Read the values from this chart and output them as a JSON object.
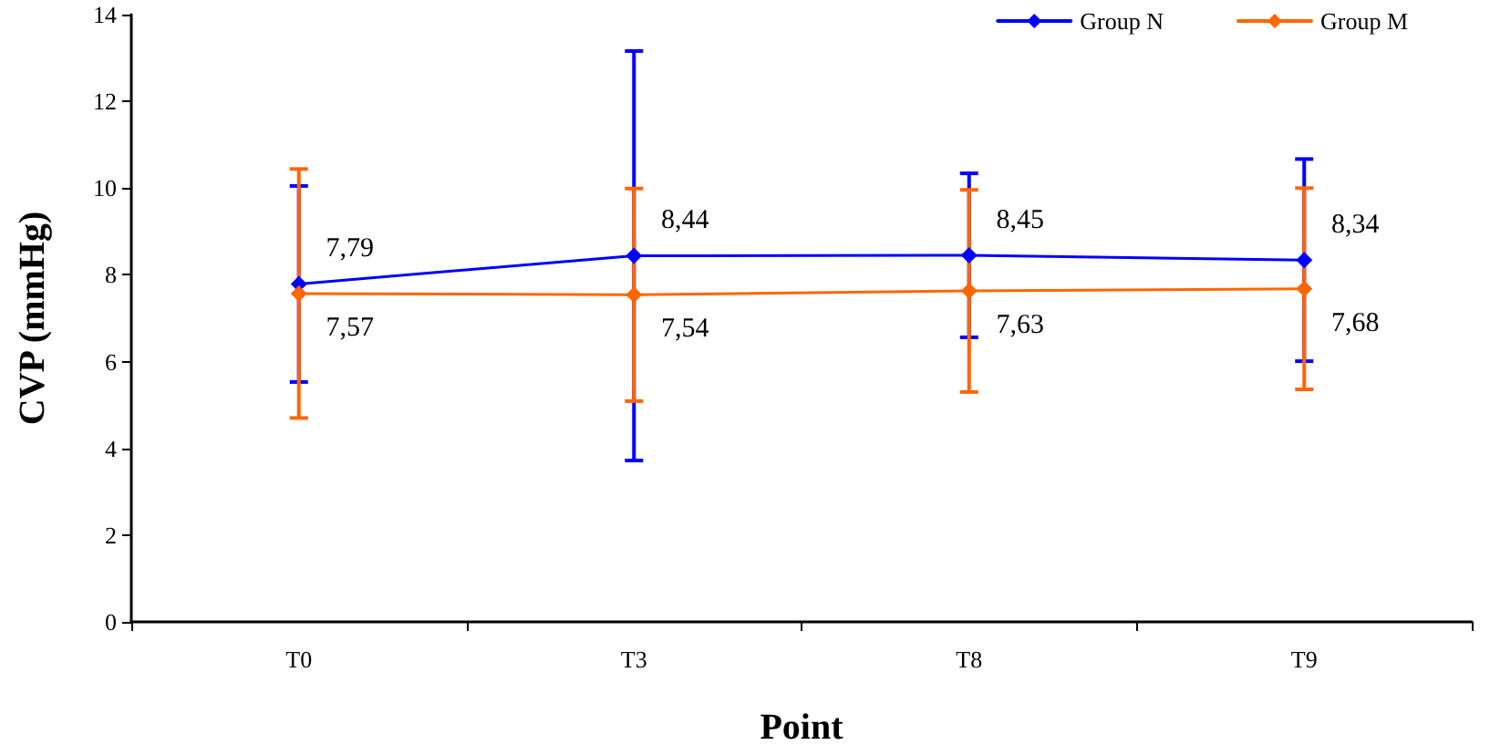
{
  "chart_data": {
    "type": "line",
    "xlabel": "Point",
    "ylabel": "CVP (mmHg)",
    "categories": [
      "T0",
      "T3",
      "T8",
      "T9"
    ],
    "series": [
      {
        "name": "Group N",
        "color": "#0000ff",
        "values": [
          7.79,
          8.44,
          8.45,
          8.34
        ],
        "errors": [
          2.26,
          4.72,
          1.89,
          2.33
        ],
        "value_labels": [
          "7,79",
          "8,44",
          "8,45",
          "8,34"
        ]
      },
      {
        "name": "Group M",
        "color": "#ff6600",
        "values": [
          7.57,
          7.54,
          7.63,
          7.68
        ],
        "errors": [
          2.87,
          2.45,
          2.33,
          2.32
        ],
        "value_labels": [
          "7,57",
          "7,54",
          "7,63",
          "7,68"
        ]
      }
    ],
    "ylim": [
      0,
      14
    ],
    "yticks": [
      0,
      2,
      4,
      6,
      8,
      10,
      12,
      14
    ],
    "grid": false,
    "legend": "top right",
    "marker": "diamond",
    "line_style": "solid"
  }
}
